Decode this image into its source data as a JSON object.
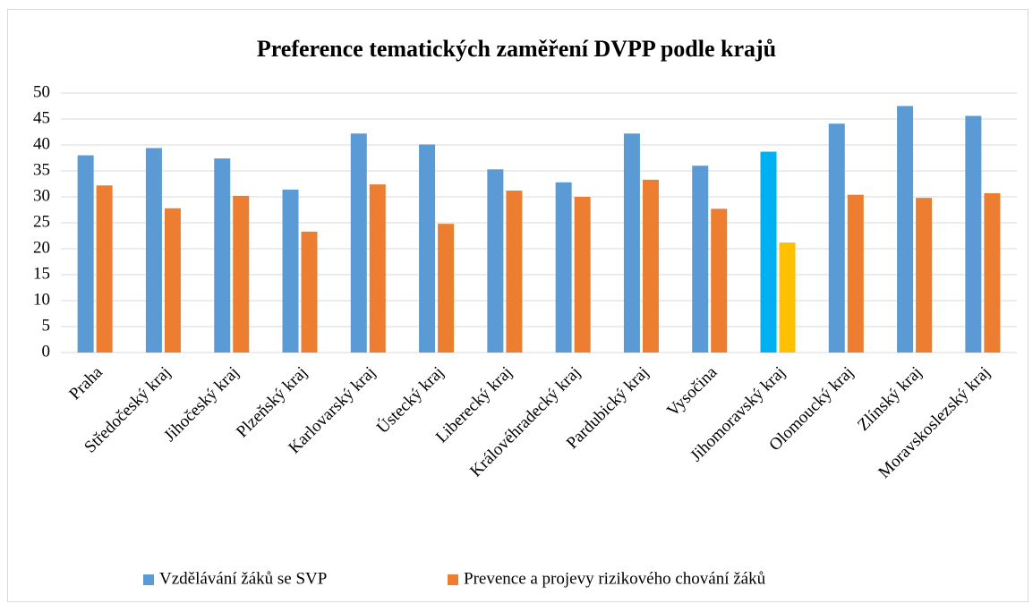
{
  "chart_data": {
    "type": "bar",
    "title": "Preference tematických zaměření DVPP podle krajů",
    "categories": [
      "Praha",
      "Středočeský kraj",
      "Jihočeský kraj",
      "Plzeňský kraj",
      "Karlovarský kraj",
      "Ústecký kraj",
      "Liberecký kraj",
      "Královéhradecký kraj",
      "Pardubický kraj",
      "Vysočina",
      "Jihomoravský kraj",
      "Olomoucký kraj",
      "Zlínský kraj",
      "Moravskoslezský kraj"
    ],
    "series": [
      {
        "name": "Vzdělávání žáků se SVP",
        "color": "#5b9bd5",
        "colors": [
          "#5b9bd5",
          "#5b9bd5",
          "#5b9bd5",
          "#5b9bd5",
          "#5b9bd5",
          "#5b9bd5",
          "#5b9bd5",
          "#5b9bd5",
          "#5b9bd5",
          "#5b9bd5",
          "#00b0f0",
          "#5b9bd5",
          "#5b9bd5",
          "#5b9bd5"
        ],
        "values": [
          38,
          39.4,
          37.4,
          31.4,
          42.2,
          40.1,
          35.3,
          32.8,
          42.2,
          36,
          38.7,
          44.1,
          47.5,
          45.6
        ]
      },
      {
        "name": "Prevence a projevy rizikového chování žáků",
        "color": "#ed7d31",
        "colors": [
          "#ed7d31",
          "#ed7d31",
          "#ed7d31",
          "#ed7d31",
          "#ed7d31",
          "#ed7d31",
          "#ed7d31",
          "#ed7d31",
          "#ed7d31",
          "#ed7d31",
          "#ffc000",
          "#ed7d31",
          "#ed7d31",
          "#ed7d31"
        ],
        "values": [
          32.2,
          27.8,
          30.2,
          23.3,
          32.4,
          24.8,
          31.2,
          30,
          33.3,
          27.7,
          21.2,
          30.4,
          29.8,
          30.7
        ]
      }
    ],
    "ylim": [
      0,
      50
    ],
    "yticks": [
      0,
      5,
      10,
      15,
      20,
      25,
      30,
      35,
      40,
      45,
      50
    ],
    "grid": true,
    "legend": "bottom"
  }
}
